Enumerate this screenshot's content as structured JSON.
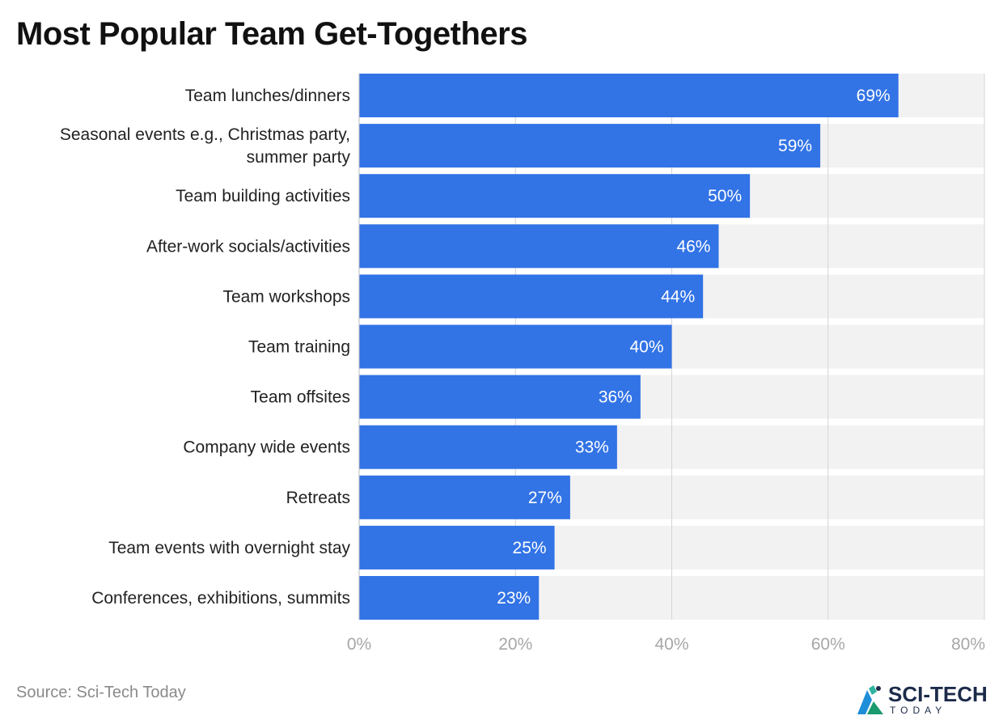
{
  "title": "Most Popular Team Get-Togethers",
  "source": "Source: Sci-Tech Today",
  "logo": {
    "main": "SCI-TECH",
    "sub": "TODAY",
    "icon": "sci-tech-logo-icon"
  },
  "colors": {
    "bar": "#3273e6",
    "track": "#f2f2f2",
    "grid": "#d4d4d4",
    "value_text": "#ffffff"
  },
  "chart_data": {
    "type": "bar",
    "orientation": "horizontal",
    "title": "Most Popular Team Get-Togethers",
    "categories": [
      [
        "Team lunches/dinners"
      ],
      [
        "Seasonal events e.g., Christmas party,",
        "summer party"
      ],
      [
        "Team building activities"
      ],
      [
        "After-work socials/activities"
      ],
      [
        "Team workshops"
      ],
      [
        "Team training"
      ],
      [
        "Team offsites"
      ],
      [
        "Company wide events"
      ],
      [
        "Retreats"
      ],
      [
        "Team events with overnight stay"
      ],
      [
        "Conferences, exhibitions, summits"
      ]
    ],
    "values": [
      69,
      59,
      50,
      46,
      44,
      40,
      36,
      33,
      27,
      25,
      23
    ],
    "value_labels": [
      "69%",
      "59%",
      "50%",
      "46%",
      "44%",
      "40%",
      "36%",
      "33%",
      "27%",
      "25%",
      "23%"
    ],
    "xlim": [
      0,
      80
    ],
    "xticks": [
      0,
      20,
      40,
      60,
      80
    ],
    "xtick_labels": [
      "0%",
      "20%",
      "40%",
      "60%",
      "80%"
    ],
    "grid": true,
    "legend": "none"
  }
}
